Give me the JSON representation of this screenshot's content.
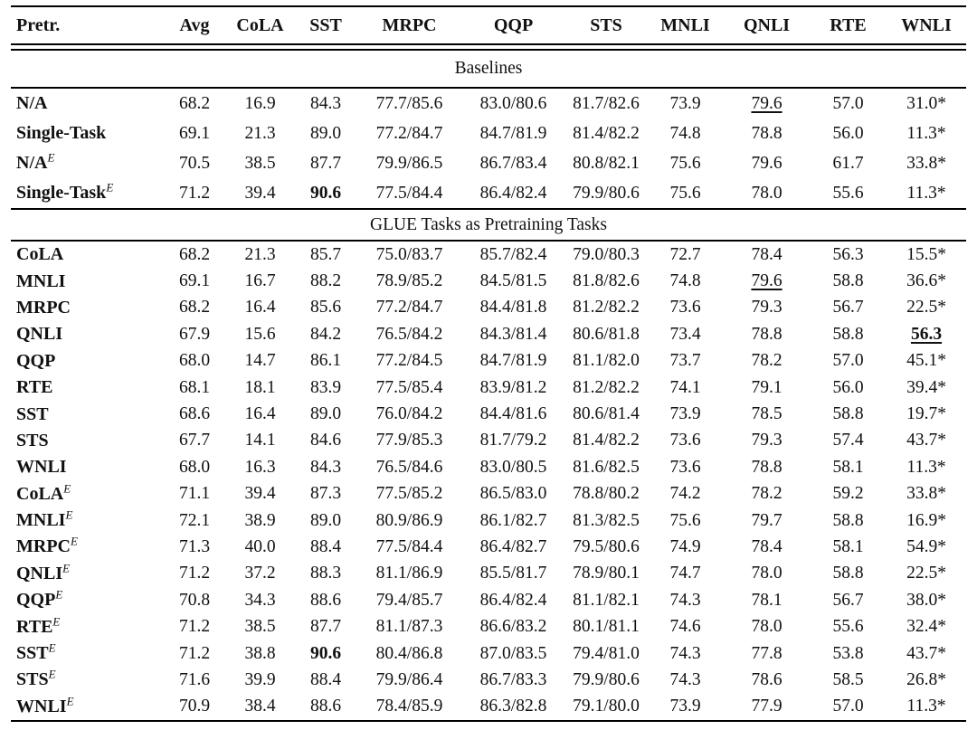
{
  "table": {
    "columns": [
      "Pretr.",
      "Avg",
      "CoLA",
      "SST",
      "MRPC",
      "QQP",
      "STS",
      "MNLI",
      "QNLI",
      "RTE",
      "WNLI"
    ],
    "sections": [
      {
        "title": "Baselines",
        "rows": [
          {
            "label": "N/A",
            "cells": [
              "68.2",
              "16.9",
              "84.3",
              "77.7/85.6",
              "83.0/80.6",
              "81.7/82.6",
              "73.9",
              {
                "v": "79.6",
                "u": true
              },
              "57.0",
              "31.0*"
            ]
          },
          {
            "label": "Single-Task",
            "cells": [
              "69.1",
              "21.3",
              "89.0",
              "77.2/84.7",
              "84.7/81.9",
              "81.4/82.2",
              "74.8",
              "78.8",
              "56.0",
              "11.3*"
            ]
          },
          {
            "label": "N/A",
            "sup": "E",
            "cells": [
              "70.5",
              "38.5",
              "87.7",
              "79.9/86.5",
              "86.7/83.4",
              "80.8/82.1",
              "75.6",
              "79.6",
              "61.7",
              "33.8*"
            ]
          },
          {
            "label": "Single-Task",
            "sup": "E",
            "cells": [
              "71.2",
              "39.4",
              {
                "v": "90.6",
                "b": true
              },
              "77.5/84.4",
              "86.4/82.4",
              "79.9/80.6",
              "75.6",
              "78.0",
              "55.6",
              "11.3*"
            ]
          }
        ]
      },
      {
        "title": "GLUE Tasks as Pretraining Tasks",
        "rows": [
          {
            "label": "CoLA",
            "cells": [
              "68.2",
              "21.3",
              "85.7",
              "75.0/83.7",
              "85.7/82.4",
              "79.0/80.3",
              "72.7",
              "78.4",
              "56.3",
              "15.5*"
            ]
          },
          {
            "label": "MNLI",
            "cells": [
              "69.1",
              "16.7",
              "88.2",
              "78.9/85.2",
              "84.5/81.5",
              "81.8/82.6",
              "74.8",
              {
                "v": "79.6",
                "u": true
              },
              "58.8",
              "36.6*"
            ]
          },
          {
            "label": "MRPC",
            "cells": [
              "68.2",
              "16.4",
              "85.6",
              "77.2/84.7",
              "84.4/81.8",
              "81.2/82.2",
              "73.6",
              "79.3",
              "56.7",
              "22.5*"
            ]
          },
          {
            "label": "QNLI",
            "cells": [
              "67.9",
              "15.6",
              "84.2",
              "76.5/84.2",
              "84.3/81.4",
              "80.6/81.8",
              "73.4",
              "78.8",
              "58.8",
              {
                "v": "56.3",
                "b": true,
                "u": true
              }
            ]
          },
          {
            "label": "QQP",
            "cells": [
              "68.0",
              "14.7",
              "86.1",
              "77.2/84.5",
              "84.7/81.9",
              "81.1/82.0",
              "73.7",
              "78.2",
              "57.0",
              "45.1*"
            ]
          },
          {
            "label": "RTE",
            "cells": [
              "68.1",
              "18.1",
              "83.9",
              "77.5/85.4",
              "83.9/81.2",
              "81.2/82.2",
              "74.1",
              "79.1",
              "56.0",
              "39.4*"
            ]
          },
          {
            "label": "SST",
            "cells": [
              "68.6",
              "16.4",
              "89.0",
              "76.0/84.2",
              "84.4/81.6",
              "80.6/81.4",
              "73.9",
              "78.5",
              "58.8",
              "19.7*"
            ]
          },
          {
            "label": "STS",
            "cells": [
              "67.7",
              "14.1",
              "84.6",
              "77.9/85.3",
              "81.7/79.2",
              "81.4/82.2",
              "73.6",
              "79.3",
              "57.4",
              "43.7*"
            ]
          },
          {
            "label": "WNLI",
            "cells": [
              "68.0",
              "16.3",
              "84.3",
              "76.5/84.6",
              "83.0/80.5",
              "81.6/82.5",
              "73.6",
              "78.8",
              "58.1",
              "11.3*"
            ]
          },
          {
            "label": "CoLA",
            "sup": "E",
            "cells": [
              "71.1",
              "39.4",
              "87.3",
              "77.5/85.2",
              "86.5/83.0",
              "78.8/80.2",
              "74.2",
              "78.2",
              "59.2",
              "33.8*"
            ]
          },
          {
            "label": "MNLI",
            "sup": "E",
            "cells": [
              "72.1",
              "38.9",
              "89.0",
              "80.9/86.9",
              "86.1/82.7",
              "81.3/82.5",
              "75.6",
              "79.7",
              "58.8",
              "16.9*"
            ]
          },
          {
            "label": "MRPC",
            "sup": "E",
            "cells": [
              "71.3",
              "40.0",
              "88.4",
              "77.5/84.4",
              "86.4/82.7",
              "79.5/80.6",
              "74.9",
              "78.4",
              "58.1",
              "54.9*"
            ]
          },
          {
            "label": "QNLI",
            "sup": "E",
            "cells": [
              "71.2",
              "37.2",
              "88.3",
              "81.1/86.9",
              "85.5/81.7",
              "78.9/80.1",
              "74.7",
              "78.0",
              "58.8",
              "22.5*"
            ]
          },
          {
            "label": "QQP",
            "sup": "E",
            "cells": [
              "70.8",
              "34.3",
              "88.6",
              "79.4/85.7",
              "86.4/82.4",
              "81.1/82.1",
              "74.3",
              "78.1",
              "56.7",
              "38.0*"
            ]
          },
          {
            "label": "RTE",
            "sup": "E",
            "cells": [
              "71.2",
              "38.5",
              "87.7",
              "81.1/87.3",
              "86.6/83.2",
              "80.1/81.1",
              "74.6",
              "78.0",
              "55.6",
              "32.4*"
            ]
          },
          {
            "label": "SST",
            "sup": "E",
            "cells": [
              "71.2",
              "38.8",
              {
                "v": "90.6",
                "b": true
              },
              "80.4/86.8",
              "87.0/83.5",
              "79.4/81.0",
              "74.3",
              "77.8",
              "53.8",
              "43.7*"
            ]
          },
          {
            "label": "STS",
            "sup": "E",
            "cells": [
              "71.6",
              "39.9",
              "88.4",
              "79.9/86.4",
              "86.7/83.3",
              "79.9/80.6",
              "74.3",
              "78.6",
              "58.5",
              "26.8*"
            ]
          },
          {
            "label": "WNLI",
            "sup": "E",
            "cells": [
              "70.9",
              "38.4",
              "88.6",
              "78.4/85.9",
              "86.3/82.8",
              "79.1/80.0",
              "73.9",
              "77.9",
              "57.0",
              "11.3*"
            ]
          }
        ]
      }
    ]
  }
}
